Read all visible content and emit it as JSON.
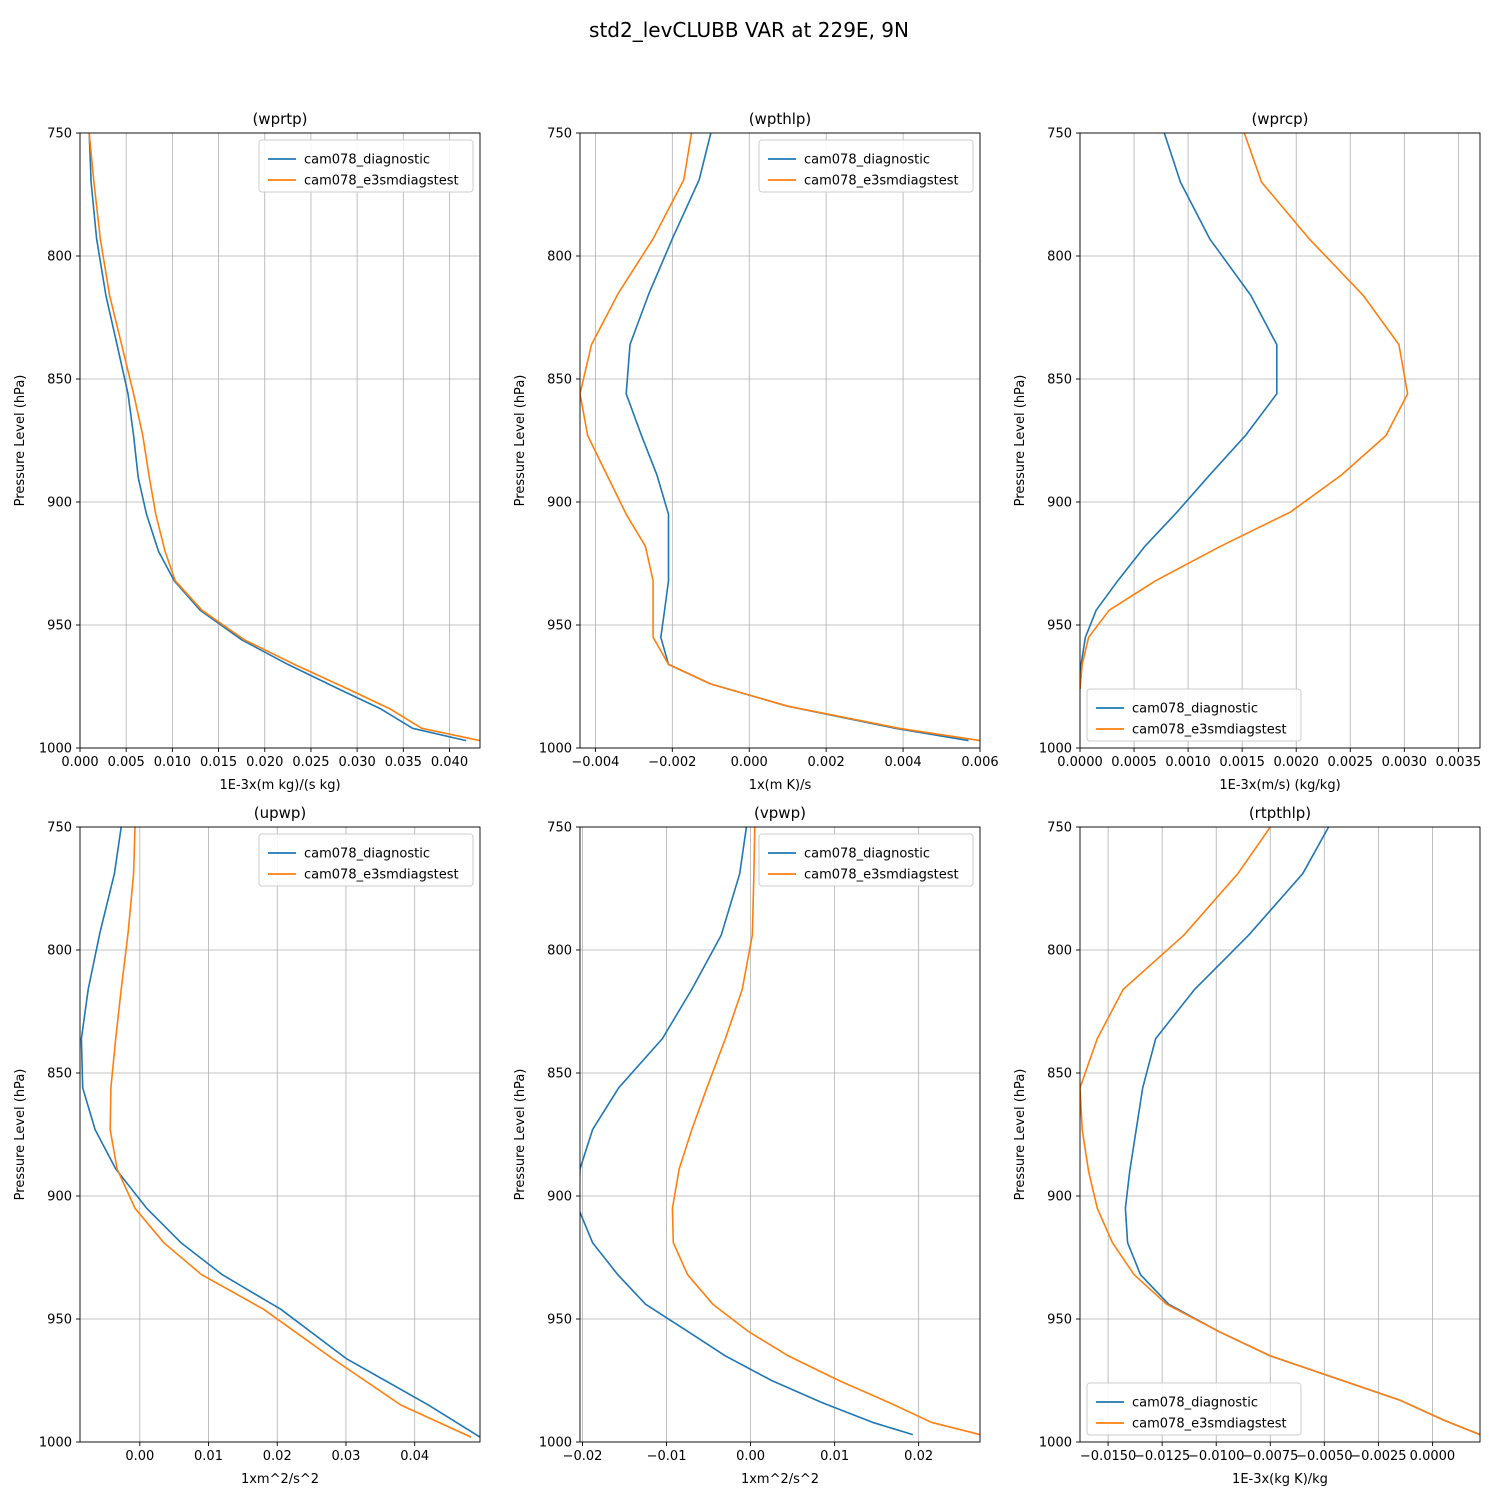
{
  "figure": {
    "title": "std2_levCLUBB VAR at 229E, 9N"
  },
  "colors": {
    "series1": "#1f77b4",
    "series2": "#ff7f0e",
    "grid": "#b0b0b0"
  },
  "chart_data": [
    {
      "type": "line",
      "title": "(wprtp)",
      "xlabel": "1E-3x(m kg)/(s kg)",
      "ylabel": "Pressure Level (hPa)",
      "xlim": [
        0,
        0.0433
      ],
      "ylim": [
        1000,
        750
      ],
      "xticks": [
        0,
        0.005,
        0.01,
        0.015,
        0.02,
        0.025,
        0.03,
        0.035,
        0.04
      ],
      "xtick_labels": [
        "0.000",
        "0.005",
        "0.010",
        "0.015",
        "0.020",
        "0.025",
        "0.030",
        "0.035",
        "0.040"
      ],
      "yticks": [
        750,
        800,
        850,
        900,
        950,
        1000
      ],
      "ytick_labels": [
        "750",
        "800",
        "850",
        "900",
        "950",
        "1000"
      ],
      "grid": true,
      "legend_loc": "upper-right",
      "series": [
        {
          "name": "cam078_diagnostic",
          "x": [
            0.001,
            0.0012,
            0.0018,
            0.0028,
            0.004,
            0.0052,
            0.0058,
            0.0063,
            0.0072,
            0.0085,
            0.0102,
            0.013,
            0.0175,
            0.0225,
            0.028,
            0.0325,
            0.036,
            0.0418
          ],
          "p": [
            750,
            770,
            793,
            816,
            836,
            856,
            873,
            890,
            905,
            920,
            932,
            944,
            956,
            966,
            976,
            984,
            992,
            997
          ]
        },
        {
          "name": "cam078_e3smdiagstest",
          "x": [
            0.001,
            0.0015,
            0.0022,
            0.0032,
            0.0045,
            0.0058,
            0.0068,
            0.0075,
            0.0082,
            0.0092,
            0.0103,
            0.0132,
            0.0178,
            0.0232,
            0.029,
            0.0335,
            0.037,
            0.0433
          ],
          "p": [
            750,
            770,
            793,
            816,
            836,
            856,
            873,
            890,
            905,
            920,
            932,
            944,
            956,
            966,
            976,
            984,
            992,
            997
          ]
        }
      ]
    },
    {
      "type": "line",
      "title": "(wpthlp)",
      "xlabel": "1x(m K)/s",
      "ylabel": "Pressure Level (hPa)",
      "xlim": [
        -0.0044,
        0.006
      ],
      "ylim": [
        1000,
        750
      ],
      "xticks": [
        -0.004,
        -0.002,
        0,
        0.002,
        0.004,
        0.006
      ],
      "xtick_labels": [
        "−0.004",
        "−0.002",
        "0.000",
        "0.002",
        "0.004",
        "0.006"
      ],
      "yticks": [
        750,
        800,
        850,
        900,
        950,
        1000
      ],
      "ytick_labels": [
        "750",
        "800",
        "850",
        "900",
        "950",
        "1000"
      ],
      "grid": true,
      "legend_loc": "upper-right",
      "series": [
        {
          "name": "cam078_diagnostic",
          "x": [
            -0.001,
            -0.0013,
            -0.002,
            -0.0026,
            -0.0031,
            -0.0032,
            -0.0028,
            -0.0024,
            -0.0021,
            -0.0021,
            -0.0021,
            -0.0022,
            -0.0023,
            -0.0021,
            -0.001,
            0.001,
            0.0038,
            0.0057
          ],
          "p": [
            750,
            769,
            793,
            815,
            836,
            856,
            873,
            889,
            905,
            918,
            932,
            944,
            955,
            966,
            974,
            983,
            992,
            997
          ]
        },
        {
          "name": "cam078_e3smdiagstest",
          "x": [
            -0.0015,
            -0.0017,
            -0.0025,
            -0.0034,
            -0.0041,
            -0.0044,
            -0.0042,
            -0.0037,
            -0.0032,
            -0.0027,
            -0.0025,
            -0.0025,
            -0.0025,
            -0.0021,
            -0.001,
            0.001,
            0.0039,
            0.006
          ],
          "p": [
            750,
            769,
            793,
            815,
            836,
            856,
            873,
            889,
            905,
            918,
            932,
            944,
            955,
            966,
            974,
            983,
            992,
            997
          ]
        }
      ]
    },
    {
      "type": "line",
      "title": "(wprcp)",
      "xlabel": "1E-3x(m/s) (kg/kg)",
      "ylabel": "Pressure Level (hPa)",
      "xlim": [
        0,
        0.0037
      ],
      "ylim": [
        1000,
        750
      ],
      "xticks": [
        0,
        0.0005,
        0.001,
        0.0015,
        0.002,
        0.0025,
        0.003,
        0.0035
      ],
      "xtick_labels": [
        "0.0000",
        "0.0005",
        "0.0010",
        "0.0015",
        "0.0020",
        "0.0025",
        "0.0030",
        "0.0035"
      ],
      "yticks": [
        750,
        800,
        850,
        900,
        950,
        1000
      ],
      "ytick_labels": [
        "750",
        "800",
        "850",
        "900",
        "950",
        "1000"
      ],
      "grid": true,
      "legend_loc": "lower-left",
      "series": [
        {
          "name": "cam078_diagnostic",
          "x": [
            0.00078,
            0.00093,
            0.0012,
            0.00158,
            0.00182,
            0.00182,
            0.00153,
            0.0012,
            0.0009,
            0.0006,
            0.00035,
            0.00015,
            5e-05,
            1e-05,
            0
          ],
          "p": [
            750,
            770,
            793,
            816,
            836,
            856,
            873,
            889,
            904,
            918,
            932,
            944,
            955,
            966,
            976
          ]
        },
        {
          "name": "cam078_e3smdiagstest",
          "x": [
            0.00152,
            0.00168,
            0.00212,
            0.00262,
            0.00295,
            0.00303,
            0.00283,
            0.00242,
            0.00195,
            0.0013,
            0.0007,
            0.00027,
            8e-05,
            2e-05,
            0
          ],
          "p": [
            750,
            770,
            793,
            816,
            836,
            856,
            873,
            889,
            904,
            918,
            932,
            944,
            955,
            966,
            976
          ]
        }
      ]
    },
    {
      "type": "line",
      "title": "(upwp)",
      "xlabel": "1xm^2/s^2",
      "ylabel": "Pressure Level (hPa)",
      "xlim": [
        -0.0087,
        0.0495
      ],
      "ylim": [
        1000,
        750
      ],
      "xticks": [
        0,
        0.01,
        0.02,
        0.03,
        0.04
      ],
      "xtick_labels": [
        "0.00",
        "0.01",
        "0.02",
        "0.03",
        "0.04"
      ],
      "yticks": [
        750,
        800,
        850,
        900,
        950,
        1000
      ],
      "ytick_labels": [
        "750",
        "800",
        "850",
        "900",
        "950",
        "1000"
      ],
      "grid": true,
      "legend_loc": "upper-right",
      "series": [
        {
          "name": "cam078_diagnostic",
          "x": [
            -0.0027,
            -0.0037,
            -0.0058,
            -0.0075,
            -0.0085,
            -0.0083,
            -0.0065,
            -0.0035,
            0.001,
            0.006,
            0.012,
            0.0205,
            0.03,
            0.042,
            0.0495
          ],
          "p": [
            750,
            769,
            793,
            816,
            836,
            856,
            873,
            889,
            905,
            919,
            932,
            946,
            966,
            985,
            998
          ]
        },
        {
          "name": "cam078_e3smdiagstest",
          "x": [
            -0.0007,
            -0.0009,
            -0.0017,
            -0.0027,
            -0.0035,
            -0.0042,
            -0.0043,
            -0.0033,
            -0.0007,
            0.0035,
            0.009,
            0.018,
            0.028,
            0.038,
            0.0482
          ],
          "p": [
            750,
            769,
            793,
            816,
            836,
            856,
            873,
            889,
            905,
            919,
            932,
            946,
            966,
            985,
            998
          ]
        }
      ]
    },
    {
      "type": "line",
      "title": "(vpwp)",
      "xlabel": "1xm^2/s^2",
      "ylabel": "Pressure Level (hPa)",
      "xlim": [
        -0.0203,
        0.0273
      ],
      "ylim": [
        1000,
        750
      ],
      "xticks": [
        -0.02,
        -0.01,
        0,
        0.01,
        0.02
      ],
      "xtick_labels": [
        "−0.02",
        "−0.01",
        "0.00",
        "0.01",
        "0.02"
      ],
      "yticks": [
        750,
        800,
        850,
        900,
        950,
        1000
      ],
      "ytick_labels": [
        "750",
        "800",
        "850",
        "900",
        "950",
        "1000"
      ],
      "grid": true,
      "legend_loc": "upper-right",
      "series": [
        {
          "name": "cam078_diagnostic",
          "x": [
            -0.0005,
            -0.0013,
            -0.0035,
            -0.007,
            -0.0105,
            -0.0157,
            -0.0188,
            -0.0203,
            -0.0205,
            -0.0188,
            -0.0158,
            -0.0125,
            -0.0075,
            -0.003,
            0.0025,
            0.0085,
            0.0145,
            0.0193
          ],
          "p": [
            750,
            769,
            794,
            816,
            836,
            856,
            873,
            889,
            905,
            919,
            932,
            944,
            955,
            965,
            975,
            984,
            992,
            997
          ]
        },
        {
          "name": "cam078_e3smdiagstest",
          "x": [
            0.0005,
            0.0004,
            0.0002,
            -0.001,
            -0.003,
            -0.0052,
            -0.007,
            -0.0085,
            -0.0093,
            -0.0092,
            -0.0075,
            -0.0045,
            -0.0003,
            0.0045,
            0.0105,
            0.0165,
            0.0215,
            0.0273
          ],
          "p": [
            750,
            769,
            794,
            816,
            836,
            856,
            873,
            889,
            905,
            919,
            932,
            944,
            955,
            965,
            975,
            984,
            992,
            997
          ]
        }
      ]
    },
    {
      "type": "line",
      "title": "(rtpthlp)",
      "xlabel": "1E-3x(kg K)/kg",
      "ylabel": "Pressure Level (hPa)",
      "xlim": [
        -0.0163,
        0.0022
      ],
      "ylim": [
        1000,
        750
      ],
      "xticks": [
        -0.015,
        -0.0125,
        -0.01,
        -0.0075,
        -0.005,
        -0.0025,
        0
      ],
      "xtick_labels": [
        "−0.0150",
        "−0.0125",
        "−0.0100",
        "−0.0075",
        "−0.0050",
        "−0.0025",
        "0.0000"
      ],
      "yticks": [
        750,
        800,
        850,
        900,
        950,
        1000
      ],
      "ytick_labels": [
        "750",
        "800",
        "850",
        "900",
        "950",
        "1000"
      ],
      "grid": true,
      "legend_loc": "lower-left",
      "series": [
        {
          "name": "cam078_diagnostic",
          "x": [
            -0.0048,
            -0.006,
            -0.0085,
            -0.011,
            -0.0128,
            -0.0134,
            -0.0137,
            -0.014,
            -0.0142,
            -0.0141,
            -0.0135,
            -0.0122,
            -0.0099,
            -0.0075,
            -0.0045,
            -0.0015,
            0.0005,
            0.0022
          ],
          "p": [
            750,
            769,
            794,
            816,
            836,
            856,
            873,
            890,
            905,
            919,
            932,
            944,
            955,
            965,
            974,
            983,
            991,
            997
          ]
        },
        {
          "name": "cam078_e3smdiagstest",
          "x": [
            -0.0075,
            -0.009,
            -0.0115,
            -0.0143,
            -0.0155,
            -0.0163,
            -0.0162,
            -0.0159,
            -0.0155,
            -0.0148,
            -0.0138,
            -0.0123,
            -0.0099,
            -0.0075,
            -0.0045,
            -0.0015,
            0.0005,
            0.0022
          ],
          "p": [
            750,
            769,
            794,
            816,
            836,
            856,
            873,
            890,
            905,
            919,
            932,
            944,
            955,
            965,
            974,
            983,
            991,
            997
          ]
        }
      ]
    }
  ]
}
